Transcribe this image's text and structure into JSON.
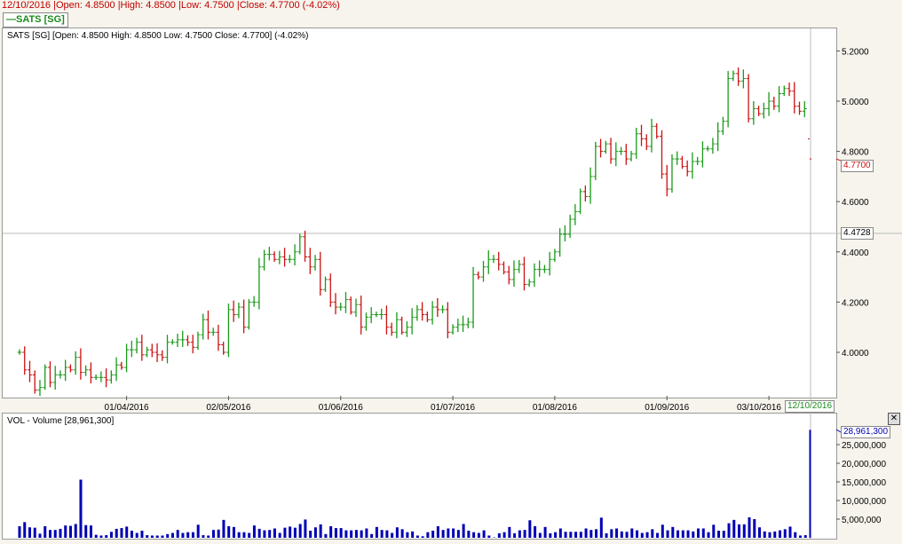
{
  "header": {
    "info": "12/10/2016 |Open: 4.8500 |High: 4.8500 |Low: 4.7500 |Close: 4.7700 (-4.02%)"
  },
  "legend": {
    "label": "SATS [SG]",
    "color": "#1a8a1a"
  },
  "price_panel": {
    "title": "SATS [SG] [Open: 4.8500  High: 4.8500  Low: 4.7500  Close: 4.7700] (-4.02%)"
  },
  "volume_panel": {
    "title": "VOL - Volume [28,961,300]",
    "close_icon": "close-x-icon"
  },
  "crosshair": {
    "price_label": "4.4728",
    "date_label": "12/10/2016"
  },
  "last_price_label": "4.7700",
  "last_volume_label": "28,961,300",
  "colors": {
    "up": "#1a9a1a",
    "down": "#cc1111",
    "volume": "#0000b4",
    "background": "#f6f4ec"
  },
  "chart_data": [
    {
      "type": "ohlc",
      "series_name": "SATS [SG]",
      "last_bar": {
        "open": 4.85,
        "high": 4.85,
        "low": 4.75,
        "close": 4.77
      },
      "y_ticks": [
        "5.2000",
        "5.0000",
        "4.8000",
        "4.6000",
        "4.4000",
        "4.2000",
        "4.0000"
      ],
      "ylim": [
        3.84,
        5.31
      ],
      "x_ticks": [
        {
          "label": "01/04/2016",
          "bar": 21
        },
        {
          "label": "02/05/2016",
          "bar": 41
        },
        {
          "label": "01/06/2016",
          "bar": 63
        },
        {
          "label": "01/07/2016",
          "bar": 85
        },
        {
          "label": "01/08/2016",
          "bar": 105
        },
        {
          "label": "01/09/2016",
          "bar": 127
        },
        {
          "label": "03/10/2016",
          "bar": 147
        }
      ],
      "close": [
        4.0,
        3.93,
        3.91,
        3.85,
        3.86,
        3.94,
        3.88,
        3.91,
        3.91,
        3.94,
        3.93,
        3.98,
        3.92,
        3.93,
        3.9,
        3.9,
        3.9,
        3.89,
        3.91,
        3.95,
        3.94,
        4.01,
        4.01,
        4.04,
        3.99,
        4.01,
        4.0,
        3.99,
        3.98,
        4.04,
        4.04,
        4.05,
        4.05,
        4.04,
        4.02,
        4.07,
        4.13,
        4.08,
        4.08,
        4.03,
        4.0,
        4.17,
        4.15,
        4.18,
        4.1,
        4.2,
        4.2,
        4.34,
        4.39,
        4.39,
        4.37,
        4.38,
        4.37,
        4.37,
        4.4,
        4.46,
        4.38,
        4.34,
        4.37,
        4.25,
        4.29,
        4.2,
        4.18,
        4.18,
        4.21,
        4.16,
        4.19,
        4.1,
        4.14,
        4.15,
        4.15,
        4.15,
        4.1,
        4.08,
        4.13,
        4.08,
        4.1,
        4.14,
        4.17,
        4.15,
        4.13,
        4.18,
        4.17,
        4.17,
        4.08,
        4.1,
        4.11,
        4.11,
        4.12,
        4.31,
        4.3,
        4.34,
        4.37,
        4.37,
        4.35,
        4.32,
        4.29,
        4.33,
        4.35,
        4.27,
        4.28,
        4.33,
        4.33,
        4.33,
        4.37,
        4.4,
        4.47,
        4.47,
        4.53,
        4.56,
        4.64,
        4.62,
        4.7,
        4.82,
        4.8,
        4.83,
        4.77,
        4.8,
        4.8,
        4.77,
        4.79,
        4.87,
        4.85,
        4.82,
        4.9,
        4.86,
        4.71,
        4.65,
        4.77,
        4.77,
        4.74,
        4.72,
        4.76,
        4.76,
        4.81,
        4.81,
        4.83,
        4.88,
        4.92,
        5.09,
        5.11,
        5.08,
        5.09,
        4.93,
        4.97,
        4.95,
        4.97,
        5.0,
        4.98,
        5.03,
        5.05,
        5.04,
        4.98,
        4.96,
        4.97,
        4.77
      ]
    },
    {
      "type": "bar",
      "series_name": "VOL - Volume",
      "unit": "millions",
      "y_ticks": [
        "25,000,000",
        "20,000,000",
        "15,000,000",
        "10,000,000",
        "5,000,000"
      ],
      "ylim": [
        0,
        29.5
      ],
      "values": [
        3.1,
        4.2,
        2.8,
        2.7,
        1.1,
        3.1,
        2.1,
        2.1,
        2.4,
        3.3,
        3.2,
        3.7,
        15.6,
        3.4,
        3.3,
        0.8,
        0.6,
        0.7,
        1.6,
        2.4,
        2.6,
        3.0,
        1.9,
        1.3,
        1.9,
        0.7,
        0.6,
        0.6,
        0.6,
        1.0,
        1.3,
        2.1,
        1.3,
        1.5,
        1.5,
        3.5,
        0.7,
        0.6,
        2.1,
        2.2,
        4.8,
        3.1,
        2.9,
        1.5,
        1.5,
        1.3,
        3.3,
        2.4,
        2.0,
        2.1,
        2.5,
        1.3,
        2.7,
        3.0,
        2.7,
        3.7,
        4.9,
        1.9,
        2.8,
        3.6,
        1.0,
        3.1,
        2.6,
        2.6,
        2.0,
        2.0,
        2.1,
        2.0,
        2.5,
        1.0,
        2.9,
        2.1,
        2.0,
        1.3,
        2.8,
        2.3,
        1.5,
        1.7,
        0.6,
        0.4,
        1.5,
        1.9,
        3.1,
        2.1,
        2.5,
        2.5,
        2.1,
        3.7,
        1.9,
        1.5,
        1.3,
        2.0,
        0.6,
        0.1,
        1.2,
        1.5,
        2.9,
        1.2,
        2.0,
        2.1,
        4.7,
        3.1,
        1.3,
        2.9,
        1.2,
        1.5,
        2.5,
        1.6,
        1.6,
        1.6,
        1.6,
        2.5,
        2.1,
        2.3,
        5.4,
        1.2,
        2.3,
        2.5,
        1.7,
        1.6,
        2.5,
        2.0,
        1.3,
        1.5,
        2.3,
        1.3,
        3.5,
        2.0,
        2.9,
        2.0,
        2.0,
        2.0,
        1.7,
        2.5,
        2.5,
        1.5,
        3.5,
        1.9,
        1.9,
        3.9,
        4.8,
        3.6,
        3.6,
        5.5,
        5.0,
        2.8,
        1.7,
        1.5,
        1.7,
        2.0,
        2.3,
        3.0,
        1.5,
        0.6,
        0.7,
        28.9613
      ]
    }
  ]
}
